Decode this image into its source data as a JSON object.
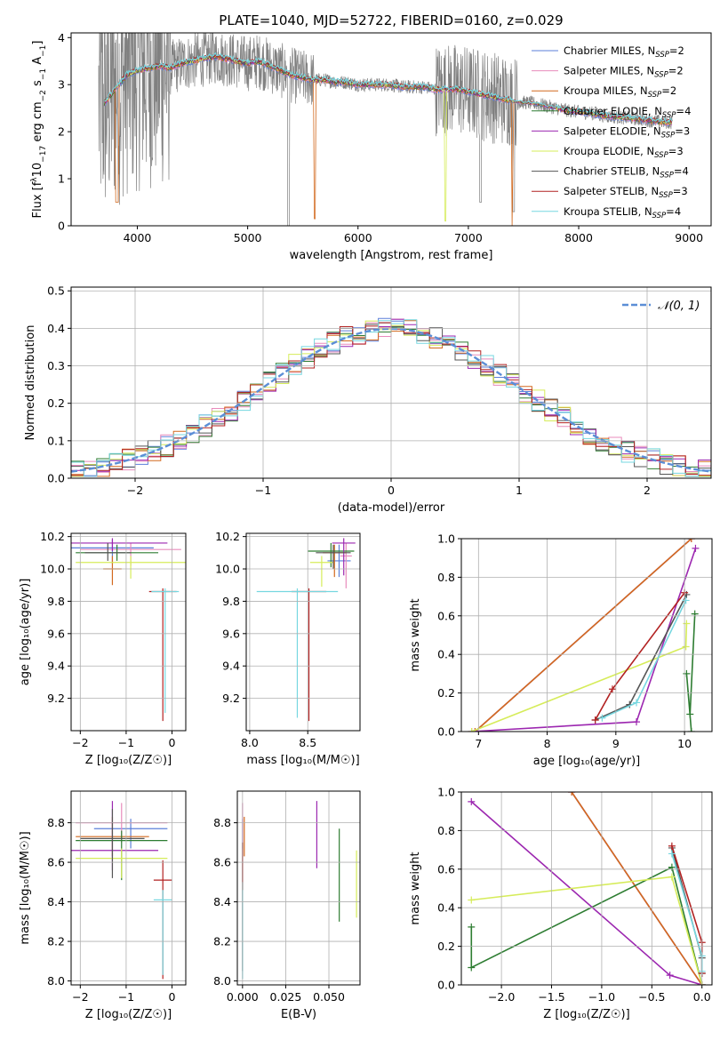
{
  "figure": {
    "title": "PLATE=1040, MJD=52722, FIBERID=0160, z=0.029"
  },
  "models": [
    {
      "name": "Chabrier MILES",
      "nssp": "2",
      "color": "#5b7fd9"
    },
    {
      "name": "Salpeter MILES",
      "nssp": "2",
      "color": "#e88bbc"
    },
    {
      "name": "Kroupa MILES",
      "nssp": "2",
      "color": "#d2691e"
    },
    {
      "name": "Chabrier ELODIE",
      "nssp": "4",
      "color": "#2e7d32"
    },
    {
      "name": "Salpeter ELODIE",
      "nssp": "3",
      "color": "#9c27b0"
    },
    {
      "name": "Kroupa ELODIE",
      "nssp": "3",
      "color": "#d6ec5a"
    },
    {
      "name": "Chabrier STELIB",
      "nssp": "4",
      "color": "#555555"
    },
    {
      "name": "Salpeter STELIB",
      "nssp": "3",
      "color": "#b22222"
    },
    {
      "name": "Kroupa STELIB",
      "nssp": "4",
      "color": "#76d7e0"
    }
  ],
  "chart_data": [
    {
      "id": "spectrum",
      "type": "line",
      "xlabel": "wavelength [Angstrom, rest frame]",
      "ylabel_pre": "Flux [f",
      "ylabel_sub": "λ",
      "ylabel_mid": "10",
      "ylabel_sup1": "−17",
      "ylabel_post": " erg cm",
      "ylabel_sup2": "−2",
      "ylabel_s": " s",
      "ylabel_sup3": "−1",
      "ylabel_a": " A",
      "ylabel_sup4": "−1",
      "ylabel_end": "]",
      "xlim": [
        3400,
        9200
      ],
      "ylim": [
        0,
        4.1
      ],
      "xticks": [
        4000,
        5000,
        6000,
        7000,
        8000,
        9000
      ],
      "yticks": [
        0,
        1,
        2,
        3,
        4
      ],
      "legend_position": "upper-right",
      "legend_prefix": "N",
      "legend_sub": "SSP",
      "data_color": "#808080",
      "data_x_range": [
        3650,
        8850
      ],
      "model_curve": {
        "x": [
          3700,
          3800,
          3900,
          4000,
          4100,
          4200,
          4300,
          4400,
          4500,
          4600,
          4700,
          4800,
          4900,
          5000,
          5100,
          5200,
          5300,
          5400,
          5500,
          5600,
          5700,
          5800,
          5900,
          6000,
          6100,
          6200,
          6300,
          6400,
          6500,
          6600,
          6700,
          6800,
          6900,
          7000,
          7100,
          7200,
          7300,
          7400,
          7500,
          7600,
          7700,
          7800,
          7900,
          8000,
          8100,
          8200,
          8300,
          8400,
          8500,
          8600,
          8700,
          8800
        ],
        "y": [
          2.6,
          2.9,
          3.2,
          3.3,
          3.35,
          3.4,
          3.35,
          3.45,
          3.5,
          3.55,
          3.6,
          3.55,
          3.5,
          3.45,
          3.5,
          3.4,
          3.3,
          3.2,
          3.15,
          3.1,
          3.1,
          3.05,
          3.05,
          3.0,
          3.0,
          3.0,
          3.0,
          2.95,
          2.95,
          2.95,
          2.9,
          2.9,
          2.9,
          2.85,
          2.8,
          2.75,
          2.7,
          2.65,
          2.62,
          2.6,
          2.55,
          2.5,
          2.45,
          2.42,
          2.4,
          2.35,
          2.32,
          2.3,
          2.28,
          2.25,
          2.22,
          2.2
        ]
      }
    },
    {
      "id": "residuals",
      "type": "histogram",
      "xlabel": "(data-model)/error",
      "ylabel": "Normed distribution",
      "xlim": [
        -2.5,
        2.5
      ],
      "ylim": [
        0,
        0.51
      ],
      "xticks": [
        -2,
        -1,
        0,
        1,
        2
      ],
      "yticks": [
        0.0,
        0.1,
        0.2,
        0.3,
        0.4,
        0.5
      ],
      "bin_width": 0.1,
      "legend_label": "𝒩(0, 1)",
      "legend_position": "upper-right",
      "gaussian_color": "#5b8ed6"
    },
    {
      "id": "age-vs-metallicity",
      "type": "scatter",
      "xlabel": "Z [log₁₀(Z/Z☉)]",
      "ylabel": "age  [log₁₀(age/yr)]",
      "xlim": [
        -2.2,
        0.3
      ],
      "ylim": [
        9.0,
        10.22
      ],
      "xticks": [
        -2,
        -1,
        0
      ],
      "yticks": [
        9.2,
        9.4,
        9.6,
        9.8,
        10.0,
        10.2
      ],
      "points": [
        {
          "model": 0,
          "x": -1.3,
          "y": 10.13,
          "xerr": 0.9,
          "yerr_lo": 0.1,
          "yerr_hi": 0.05
        },
        {
          "model": 1,
          "x": -0.9,
          "y": 10.12,
          "xerr": 1.1,
          "yerr_lo": 0.1,
          "yerr_hi": 0.04
        },
        {
          "model": 2,
          "x": -1.3,
          "y": 10.0,
          "xerr": 0.2,
          "yerr_lo": 0.1,
          "yerr_hi": 0.08
        },
        {
          "model": 3,
          "x": -1.2,
          "y": 10.1,
          "xerr": 0.9,
          "yerr_lo": 0.05,
          "yerr_hi": 0.05
        },
        {
          "model": 4,
          "x": -1.3,
          "y": 10.16,
          "xerr": 1.2,
          "yerr_lo": 0.05,
          "yerr_hi": 0.03
        },
        {
          "model": 5,
          "x": -0.9,
          "y": 10.04,
          "xerr": 1.2,
          "yerr_lo": 0.1,
          "yerr_hi": 0.04
        },
        {
          "model": 6,
          "x": -1.4,
          "y": 10.1,
          "xerr": 0.5,
          "yerr_lo": 0.05,
          "yerr_hi": 0.06
        },
        {
          "model": 7,
          "x": -0.2,
          "y": 9.86,
          "xerr": 0.3,
          "yerr_lo": 0.8,
          "yerr_hi": 0.02
        },
        {
          "model": 8,
          "x": -0.15,
          "y": 9.86,
          "xerr": 0.3,
          "yerr_lo": 0.75,
          "yerr_hi": 0.02
        }
      ]
    },
    {
      "id": "age-vs-mass",
      "type": "scatter",
      "xlabel": "mass [log₁₀(M/M☉)]",
      "ylabel": "",
      "xlim": [
        7.97,
        8.95
      ],
      "ylim": [
        9.0,
        10.22
      ],
      "xticks": [
        8.0,
        8.5
      ],
      "yticks": [
        9.2,
        9.4,
        9.6,
        9.8,
        10.0,
        10.2
      ],
      "points": [
        {
          "model": 0,
          "x": 8.77,
          "y": 10.05,
          "xerr": 0.1,
          "yerr_lo": 0.1,
          "yerr_hi": 0.1
        },
        {
          "model": 1,
          "x": 8.83,
          "y": 10.08,
          "xerr": 0.05,
          "yerr_lo": 0.2,
          "yerr_hi": 0.08
        },
        {
          "model": 2,
          "x": 8.73,
          "y": 10.1,
          "xerr": 0.1,
          "yerr_lo": 0.15,
          "yerr_hi": 0.05
        },
        {
          "model": 3,
          "x": 8.7,
          "y": 10.11,
          "xerr": 0.2,
          "yerr_lo": 0.1,
          "yerr_hi": 0.05
        },
        {
          "model": 4,
          "x": 8.81,
          "y": 10.16,
          "xerr": 0.1,
          "yerr_lo": 0.2,
          "yerr_hi": 0.03
        },
        {
          "model": 5,
          "x": 8.62,
          "y": 10.04,
          "xerr": 0.1,
          "yerr_lo": 0.15,
          "yerr_hi": 0.04
        },
        {
          "model": 6,
          "x": 8.72,
          "y": 10.1,
          "xerr": 0.15,
          "yerr_lo": 0.1,
          "yerr_hi": 0.05
        },
        {
          "model": 7,
          "x": 8.51,
          "y": 9.86,
          "xerr": 0.15,
          "yerr_lo": 0.8,
          "yerr_hi": 0.02
        },
        {
          "model": 8,
          "x": 8.41,
          "y": 9.86,
          "xerr": 0.35,
          "yerr_lo": 0.78,
          "yerr_hi": 0.02
        }
      ]
    },
    {
      "id": "mass-weight-vs-age",
      "type": "line",
      "xlabel": "age  [log₁₀(age/yr)]",
      "ylabel": "mass weight",
      "xlim": [
        6.75,
        10.4
      ],
      "ylim": [
        0,
        1.0
      ],
      "xticks": [
        7,
        8,
        9,
        10
      ],
      "yticks": [
        0.0,
        0.2,
        0.4,
        0.6,
        0.8,
        1.0
      ],
      "series": [
        {
          "model": 0,
          "x": [
            6.95,
            10.1
          ],
          "y": [
            0.0,
            1.0
          ]
        },
        {
          "model": 1,
          "x": [
            6.95,
            10.1
          ],
          "y": [
            0.0,
            1.0
          ]
        },
        {
          "model": 2,
          "x": [
            6.95,
            10.1
          ],
          "y": [
            0.0,
            1.0
          ]
        },
        {
          "model": 3,
          "x": [
            10.1,
            10.03,
            10.08,
            10.15
          ],
          "y": [
            0.0,
            0.3,
            0.09,
            0.61
          ]
        },
        {
          "model": 4,
          "x": [
            6.9,
            9.3,
            10.16
          ],
          "y": [
            0.0,
            0.05,
            0.95
          ]
        },
        {
          "model": 5,
          "x": [
            6.9,
            10.02,
            10.03
          ],
          "y": [
            0.0,
            0.44,
            0.56
          ]
        },
        {
          "model": 6,
          "x": [
            8.7,
            9.2,
            10.03
          ],
          "y": [
            0.06,
            0.14,
            0.71
          ]
        },
        {
          "model": 7,
          "x": [
            8.7,
            8.95,
            10.0
          ],
          "y": [
            0.06,
            0.22,
            0.72
          ]
        },
        {
          "model": 8,
          "x": [
            8.8,
            9.3,
            10.02
          ],
          "y": [
            0.07,
            0.15,
            0.68
          ]
        }
      ]
    },
    {
      "id": "mass-vs-metallicity",
      "type": "scatter",
      "xlabel": "Z [log₁₀(Z/Z☉)]",
      "ylabel": "mass [log₁₀(M/M☉)]",
      "xlim": [
        -2.2,
        0.3
      ],
      "ylim": [
        7.98,
        8.96
      ],
      "xticks": [
        -2,
        -1,
        0
      ],
      "yticks": [
        8.0,
        8.2,
        8.4,
        8.6,
        8.8
      ],
      "points": [
        {
          "model": 0,
          "x": -0.9,
          "y": 8.77,
          "xerr": 0.8,
          "yerr_lo": 0.1,
          "yerr_hi": 0.05
        },
        {
          "model": 1,
          "x": -1.1,
          "y": 8.8,
          "xerr": 1.0,
          "yerr_lo": 0.1,
          "yerr_hi": 0.1
        },
        {
          "model": 2,
          "x": -1.3,
          "y": 8.73,
          "xerr": 0.8,
          "yerr_lo": 0.1,
          "yerr_hi": 0.1
        },
        {
          "model": 3,
          "x": -1.1,
          "y": 8.71,
          "xerr": 1.0,
          "yerr_lo": 0.2,
          "yerr_hi": 0.05
        },
        {
          "model": 4,
          "x": -1.3,
          "y": 8.66,
          "xerr": 1.0,
          "yerr_lo": 0.1,
          "yerr_hi": 0.25
        },
        {
          "model": 5,
          "x": -1.1,
          "y": 8.62,
          "xerr": 1.0,
          "yerr_lo": 0.1,
          "yerr_hi": 0.05
        },
        {
          "model": 6,
          "x": -1.3,
          "y": 8.72,
          "xerr": 0.7,
          "yerr_lo": 0.2,
          "yerr_hi": 0.15
        },
        {
          "model": 7,
          "x": -0.2,
          "y": 8.51,
          "xerr": 0.2,
          "yerr_lo": 0.5,
          "yerr_hi": 0.1
        },
        {
          "model": 8,
          "x": -0.2,
          "y": 8.41,
          "xerr": 0.2,
          "yerr_lo": 0.38,
          "yerr_hi": 0.05
        }
      ]
    },
    {
      "id": "mass-vs-ebv",
      "type": "scatter",
      "xlabel": "E(B-V)",
      "ylabel": "",
      "xlim": [
        -0.003,
        0.068
      ],
      "ylim": [
        7.98,
        8.96
      ],
      "xticks": [
        0.0,
        0.025,
        0.05
      ],
      "xtick_labels": [
        "0.000",
        "0.025",
        "0.050"
      ],
      "yticks": [
        8.0,
        8.2,
        8.4,
        8.6,
        8.8
      ],
      "points": [
        {
          "model": 0,
          "x": 0.0,
          "y": 8.77,
          "yerr_lo": 0.1,
          "yerr_hi": 0.05
        },
        {
          "model": 1,
          "x": 0.0,
          "y": 8.8,
          "yerr_lo": 0.1,
          "yerr_hi": 0.1
        },
        {
          "model": 2,
          "x": 0.001,
          "y": 8.73,
          "yerr_lo": 0.1,
          "yerr_hi": 0.1
        },
        {
          "model": 3,
          "x": 0.056,
          "y": 8.57,
          "yerr_lo": 0.27,
          "yerr_hi": 0.2
        },
        {
          "model": 4,
          "x": 0.043,
          "y": 8.74,
          "yerr_lo": 0.17,
          "yerr_hi": 0.17
        },
        {
          "model": 5,
          "x": 0.066,
          "y": 8.49,
          "yerr_lo": 0.17,
          "yerr_hi": 0.17
        },
        {
          "model": 6,
          "x": 0.0,
          "y": 8.5,
          "yerr_lo": 0.45,
          "yerr_hi": 0.2
        },
        {
          "model": 7,
          "x": 0.0,
          "y": 8.6,
          "yerr_lo": 0.1,
          "yerr_hi": 0.1
        },
        {
          "model": 8,
          "x": 0.0,
          "y": 8.41,
          "yerr_lo": 0.4,
          "yerr_hi": 0.05
        }
      ]
    },
    {
      "id": "mass-weight-vs-metallicity",
      "type": "line",
      "xlabel": "Z [log₁₀(Z/Z☉)]",
      "ylabel": "mass weight",
      "xlim": [
        -2.4,
        0.1
      ],
      "ylim": [
        0,
        1.0
      ],
      "xticks": [
        -2.0,
        -1.5,
        -1.0,
        -0.5,
        0.0
      ],
      "xtick_labels": [
        "−2.0",
        "−1.5",
        "−1.0",
        "−0.5",
        "0.0"
      ],
      "yticks": [
        0.0,
        0.2,
        0.4,
        0.6,
        0.8,
        1.0
      ],
      "series": [
        {
          "model": 0,
          "x": [
            -1.3,
            0.0
          ],
          "y": [
            1.0,
            0.0
          ]
        },
        {
          "model": 1,
          "x": [
            -1.3,
            0.0
          ],
          "y": [
            1.0,
            0.0
          ]
        },
        {
          "model": 2,
          "x": [
            -1.3,
            0.0
          ],
          "y": [
            1.0,
            0.0
          ]
        },
        {
          "model": 3,
          "x": [
            -2.3,
            -2.3,
            -0.3,
            0.0
          ],
          "y": [
            0.3,
            0.09,
            0.61,
            0.0
          ]
        },
        {
          "model": 4,
          "x": [
            -2.3,
            -0.32,
            0.0
          ],
          "y": [
            0.95,
            0.05,
            0.0
          ]
        },
        {
          "model": 5,
          "x": [
            -2.3,
            -0.3,
            0.0
          ],
          "y": [
            0.44,
            0.56,
            0.0
          ]
        },
        {
          "model": 6,
          "x": [
            -0.3,
            0.0,
            0.0
          ],
          "y": [
            0.71,
            0.14,
            0.06
          ]
        },
        {
          "model": 7,
          "x": [
            -0.3,
            0.0,
            0.0
          ],
          "y": [
            0.72,
            0.22,
            0.06
          ]
        },
        {
          "model": 8,
          "x": [
            -0.3,
            0.0,
            0.0
          ],
          "y": [
            0.68,
            0.15,
            0.07
          ]
        }
      ]
    }
  ]
}
